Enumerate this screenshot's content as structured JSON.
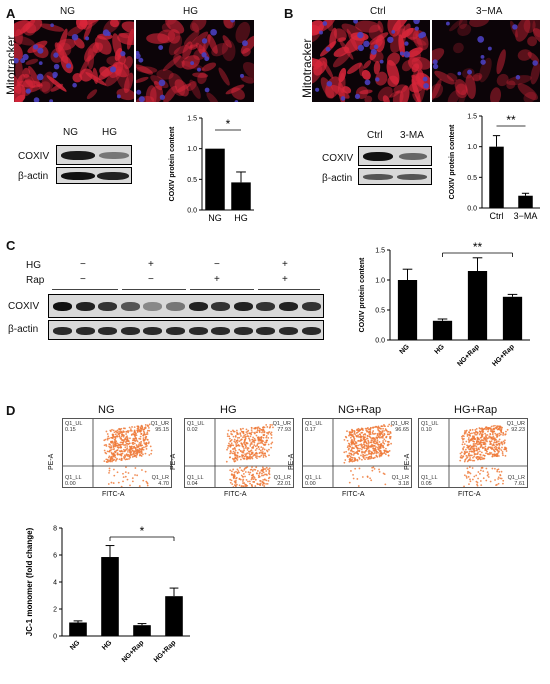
{
  "panels": {
    "A": {
      "letter": "A",
      "micro_labels": [
        "NG",
        "HG"
      ],
      "side_label": "Mitotracker",
      "blot_lanes": [
        "NG",
        "HG"
      ],
      "blot_rows": [
        "COXIV",
        "β-actin"
      ]
    },
    "B": {
      "letter": "B",
      "micro_labels": [
        "Ctrl",
        "3−MA"
      ],
      "side_label": "Mitotracker",
      "blot_lanes": [
        "Ctrl",
        "3-MA"
      ],
      "blot_rows": [
        "COXIV",
        "β-actin"
      ]
    },
    "C": {
      "letter": "C",
      "treatment_rows": [
        {
          "name": "HG",
          "signs": [
            "−",
            "+",
            "−",
            "+"
          ]
        },
        {
          "name": "Rap",
          "signs": [
            "−",
            "−",
            "+",
            "+"
          ]
        }
      ],
      "blot_rows": [
        "COXIV",
        "β-actin"
      ]
    },
    "D": {
      "letter": "D",
      "flow_plots": [
        {
          "title": "NG",
          "ul": "Q1_UL",
          "ul_val": "0.15",
          "ur": "Q1_UR",
          "ur_val": "95.15",
          "ll": "Q1_LL",
          "ll_val": "0.00",
          "lr": "Q1_LR",
          "lr_val": "4.70"
        },
        {
          "title": "HG",
          "ul": "Q1_UL",
          "ul_val": "0.02",
          "ur": "Q1_UR",
          "ur_val": "77.93",
          "ll": "Q1_LL",
          "ll_val": "0.04",
          "lr": "Q1_LR",
          "lr_val": "22.01"
        },
        {
          "title": "NG+Rap",
          "ul": "Q1_UL",
          "ul_val": "0.17",
          "ur": "Q1_UR",
          "ur_val": "96.65",
          "ll": "Q1_LL",
          "ll_val": "0.00",
          "lr": "Q1_LR",
          "lr_val": "3.18"
        },
        {
          "title": "HG+Rap",
          "ul": "Q1_UL",
          "ul_val": "0.10",
          "ur": "Q1_UR",
          "ur_val": "92.23",
          "ll": "Q1_LL",
          "ll_val": "0.05",
          "lr": "Q1_LR",
          "lr_val": "7.61"
        }
      ],
      "flow_xlabel": "FITC-A",
      "flow_ylabel": "PE-A"
    }
  },
  "chart_data": [
    {
      "id": "A",
      "type": "bar",
      "categories": [
        "NG",
        "HG"
      ],
      "values": [
        1.0,
        0.45
      ],
      "errors": [
        0,
        0.17
      ],
      "ylabel": "COXIV protein content",
      "ylim": [
        0,
        1.5
      ],
      "yticks": [
        "0.0",
        "0.5",
        "1.0",
        "1.5"
      ],
      "significance": {
        "from": 0,
        "to": 1,
        "label": "*"
      }
    },
    {
      "id": "B",
      "type": "bar",
      "categories": [
        "Ctrl",
        "3−MA"
      ],
      "values": [
        1.0,
        0.2
      ],
      "errors": [
        0.18,
        0.04
      ],
      "ylabel": "COXIV protein content",
      "ylim": [
        0,
        1.5
      ],
      "yticks": [
        "0.0",
        "0.5",
        "1.0",
        "1.5"
      ],
      "significance": {
        "from": 0,
        "to": 1,
        "label": "**"
      }
    },
    {
      "id": "C",
      "type": "bar",
      "categories": [
        "NG",
        "HG",
        "NG+Rap",
        "HG+Rap"
      ],
      "values": [
        1.0,
        0.32,
        1.15,
        0.72
      ],
      "errors": [
        0.18,
        0.03,
        0.22,
        0.04
      ],
      "ylabel": "COXIV protein content",
      "ylim": [
        0,
        1.5
      ],
      "yticks": [
        "0.0",
        "0.5",
        "1.0",
        "1.5"
      ],
      "significance": {
        "from": 1,
        "to": 3,
        "label": "**"
      }
    },
    {
      "id": "D",
      "type": "bar",
      "categories": [
        "NG",
        "HG",
        "NG+Rap",
        "HG+Rap"
      ],
      "values": [
        1.0,
        5.85,
        0.8,
        2.95
      ],
      "errors": [
        0.12,
        0.85,
        0.12,
        0.6
      ],
      "ylabel": "JC-1 monomer (fold change)",
      "ylim": [
        0,
        8
      ],
      "yticks": [
        "0",
        "2",
        "4",
        "6",
        "8"
      ],
      "significance": {
        "from": 1,
        "to": 3,
        "label": "*"
      }
    }
  ],
  "colors": {
    "bar": "#000000",
    "mito_red": "#d9263a",
    "nucleus_blue": "#4a3fbf",
    "flow_dots": "#ee7a3a"
  }
}
